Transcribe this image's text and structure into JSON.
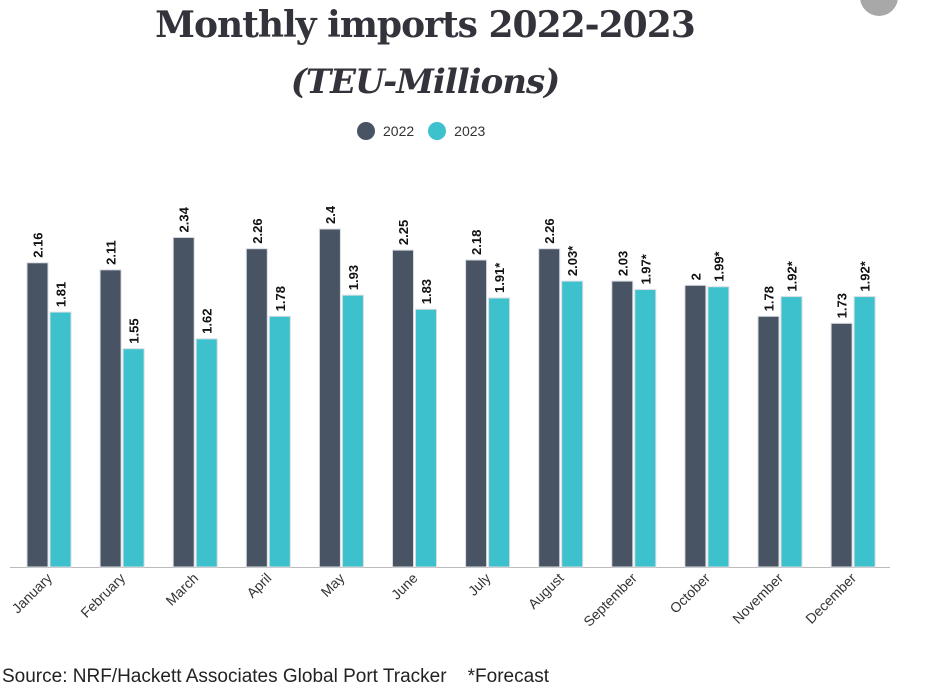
{
  "chart_data": {
    "type": "bar",
    "title": "Monthly imports 2022-2023",
    "subtitle": "(TEU-Millions)",
    "categories": [
      "January",
      "February",
      "March",
      "April",
      "May",
      "June",
      "July",
      "August",
      "September",
      "October",
      "November",
      "December"
    ],
    "series": [
      {
        "name": "2022",
        "color": "#485364",
        "values": [
          2.16,
          2.11,
          2.34,
          2.26,
          2.4,
          2.25,
          2.18,
          2.26,
          2.03,
          2,
          1.78,
          1.73
        ],
        "labels": [
          "2.16",
          "2.11",
          "2.34",
          "2.26",
          "2.4",
          "2.25",
          "2.18",
          "2.26",
          "2.03",
          "2",
          "1.78",
          "1.73"
        ]
      },
      {
        "name": "2023",
        "color": "#3cc1cd",
        "values": [
          1.81,
          1.55,
          1.62,
          1.78,
          1.93,
          1.83,
          1.91,
          2.03,
          1.97,
          1.99,
          1.92,
          1.92
        ],
        "labels": [
          "1.81",
          "1.55",
          "1.62",
          "1.78",
          "1.93",
          "1.83",
          "1.91*",
          "2.03*",
          "1.97*",
          "1.99*",
          "1.92*",
          "1.92*"
        ]
      }
    ],
    "ylim": [
      0,
      2.4
    ],
    "grid": false,
    "legend": "top-center"
  },
  "source": "Source: NRF/Hackett Associates Global Port Tracker    *Forecast"
}
